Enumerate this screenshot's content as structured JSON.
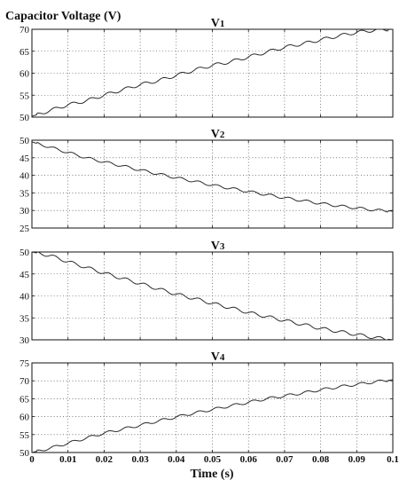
{
  "chart_data": [
    {
      "type": "line",
      "title": "V1",
      "ylabel": "Capacitor Voltage (V)",
      "xlabel": "",
      "xlim": [
        0,
        0.1
      ],
      "ylim": [
        50,
        70
      ],
      "yticks": [
        50,
        55,
        60,
        65,
        70
      ],
      "grid": true,
      "series": [
        {
          "x": [
            0,
            0.005,
            0.01,
            0.015,
            0.02,
            0.025,
            0.03,
            0.035,
            0.04,
            0.045,
            0.05,
            0.055,
            0.06,
            0.065,
            0.07,
            0.075,
            0.08,
            0.085,
            0.09,
            0.095,
            0.1
          ],
          "y": [
            50.2,
            51.5,
            52.8,
            53.7,
            55.0,
            56.2,
            57.4,
            58.3,
            59.5,
            60.7,
            61.8,
            62.6,
            63.7,
            64.8,
            65.9,
            66.7,
            67.6,
            68.5,
            69.3,
            69.8,
            70.0
          ]
        }
      ]
    },
    {
      "type": "line",
      "title": "V2",
      "xlabel": "",
      "ylabel": "",
      "xlim": [
        0,
        0.1
      ],
      "ylim": [
        25,
        50
      ],
      "yticks": [
        25,
        30,
        35,
        40,
        45,
        50
      ],
      "grid": true,
      "series": [
        {
          "x": [
            0,
            0.005,
            0.01,
            0.015,
            0.02,
            0.025,
            0.03,
            0.035,
            0.04,
            0.045,
            0.05,
            0.055,
            0.06,
            0.065,
            0.07,
            0.075,
            0.08,
            0.085,
            0.09,
            0.095,
            0.1
          ],
          "y": [
            49.5,
            48.0,
            46.5,
            45.0,
            43.8,
            42.7,
            41.5,
            40.4,
            39.3,
            38.3,
            37.2,
            36.3,
            35.4,
            34.5,
            33.6,
            32.8,
            32.0,
            31.3,
            30.7,
            30.1,
            29.8
          ]
        }
      ]
    },
    {
      "type": "line",
      "title": "V3",
      "xlabel": "",
      "ylabel": "",
      "xlim": [
        0,
        0.1
      ],
      "ylim": [
        30,
        50
      ],
      "yticks": [
        30,
        35,
        40,
        45,
        50
      ],
      "grid": true,
      "series": [
        {
          "x": [
            0,
            0.005,
            0.01,
            0.015,
            0.02,
            0.025,
            0.03,
            0.035,
            0.04,
            0.045,
            0.05,
            0.055,
            0.06,
            0.065,
            0.07,
            0.075,
            0.08,
            0.085,
            0.09,
            0.095,
            0.1
          ],
          "y": [
            50.0,
            49.2,
            47.8,
            46.5,
            45.2,
            44.0,
            42.8,
            41.6,
            40.4,
            39.4,
            38.3,
            37.3,
            36.2,
            35.3,
            34.4,
            33.5,
            32.6,
            31.9,
            31.2,
            30.5,
            30.0
          ]
        }
      ]
    },
    {
      "type": "line",
      "title": "V4",
      "xlabel": "Time (s)",
      "ylabel": "",
      "xlim": [
        0,
        0.1
      ],
      "ylim": [
        50,
        75
      ],
      "yticks": [
        50,
        55,
        60,
        65,
        70,
        75
      ],
      "xticks": [
        "0",
        "0.01",
        "0.02",
        "0.03",
        "0.04",
        "0.05",
        "0.06",
        "0.07",
        "0.08",
        "0.09",
        "0.1"
      ],
      "grid": true,
      "series": [
        {
          "x": [
            0,
            0.005,
            0.01,
            0.015,
            0.02,
            0.025,
            0.03,
            0.035,
            0.04,
            0.045,
            0.05,
            0.055,
            0.06,
            0.065,
            0.07,
            0.075,
            0.08,
            0.085,
            0.09,
            0.095,
            0.1
          ],
          "y": [
            50.0,
            51.2,
            52.6,
            54.0,
            55.4,
            56.5,
            57.6,
            58.8,
            59.9,
            61.0,
            62.0,
            63.0,
            64.0,
            65.0,
            65.8,
            66.6,
            67.5,
            68.3,
            69.0,
            69.7,
            70.3
          ]
        }
      ]
    }
  ]
}
